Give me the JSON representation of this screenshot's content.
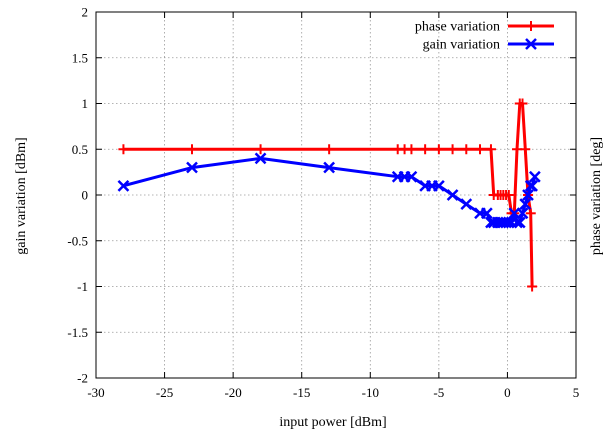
{
  "chart_data": {
    "type": "line",
    "title": "",
    "xlabel": "input power [dBm]",
    "ylabel_left": "gain variation [dBm]",
    "ylabel_right": "phase variation [deg]",
    "xlim": [
      -30,
      5
    ],
    "ylim": [
      -2,
      2
    ],
    "x_ticks": [
      -30,
      -25,
      -20,
      -15,
      -10,
      -5,
      0,
      5
    ],
    "y_ticks": [
      -2,
      -1.5,
      -1,
      -0.5,
      0,
      0.5,
      1,
      1.5,
      2
    ],
    "x_tick_labels": [
      "-30",
      "-25",
      "-20",
      "-15",
      "-10",
      "-5",
      "0",
      "5"
    ],
    "y_tick_labels": [
      "-2",
      "-1.5",
      "-1",
      "-0.5",
      "0",
      "0.5",
      "1",
      "1.5",
      "2"
    ],
    "grid": true,
    "legend_position": "top-right",
    "series": [
      {
        "name": "phase variation",
        "color": "#ff0000",
        "marker": "plus",
        "x": [
          -28,
          -23,
          -18,
          -13,
          -8,
          -7.5,
          -7,
          -6,
          -5,
          -4,
          -3,
          -2,
          -1.2,
          -1,
          -0.7,
          -0.5,
          -0.3,
          -0.1,
          0.1,
          0.3,
          0.5,
          0.7,
          0.9,
          1.1,
          1.3,
          1.5,
          1.7,
          1.8
        ],
        "values": [
          0.5,
          0.5,
          0.5,
          0.5,
          0.5,
          0.5,
          0.5,
          0.5,
          0.5,
          0.5,
          0.5,
          0.5,
          0.5,
          0.0,
          0.0,
          0.0,
          0.0,
          0.0,
          0.0,
          -0.2,
          -0.2,
          0.5,
          1.0,
          1.0,
          0.5,
          0.0,
          -0.2,
          -1.0
        ]
      },
      {
        "name": "gain variation",
        "color": "#0000ff",
        "marker": "cross",
        "x": [
          -28,
          -23,
          -18,
          -13,
          -8,
          -7.5,
          -7,
          -6,
          -5.5,
          -5,
          -4,
          -3,
          -2,
          -1.5,
          -1.2,
          -1,
          -0.7,
          -0.5,
          -0.3,
          -0.1,
          0.1,
          0.3,
          0.5,
          0.7,
          0.9,
          1.1,
          1.3,
          1.5,
          1.7,
          1.8,
          2.0
        ],
        "values": [
          0.1,
          0.3,
          0.4,
          0.3,
          0.2,
          0.2,
          0.2,
          0.1,
          0.1,
          0.1,
          0.0,
          -0.1,
          -0.2,
          -0.2,
          -0.3,
          -0.3,
          -0.3,
          -0.3,
          -0.3,
          -0.3,
          -0.3,
          -0.3,
          -0.2,
          -0.3,
          -0.3,
          -0.2,
          -0.1,
          0.0,
          0.1,
          0.1,
          0.2
        ]
      }
    ]
  }
}
